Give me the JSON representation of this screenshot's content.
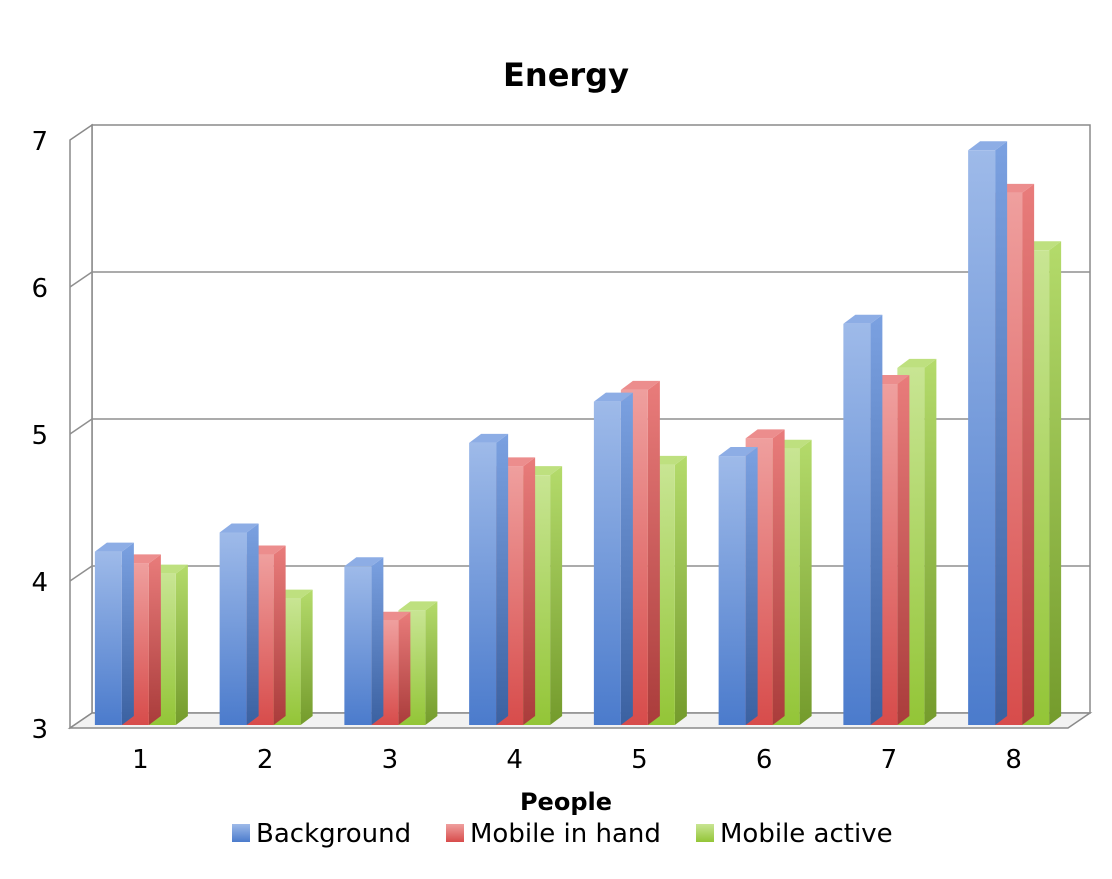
{
  "chart_data": {
    "type": "bar",
    "title": "Energy",
    "xlabel": "People",
    "ylabel": "",
    "categories": [
      "1",
      "2",
      "3",
      "4",
      "5",
      "6",
      "7",
      "8"
    ],
    "ylim": [
      3,
      7
    ],
    "yticks": [
      "3",
      "4",
      "5",
      "6",
      "7"
    ],
    "grid": true,
    "legend_position": "bottom",
    "series": [
      {
        "name": "Background",
        "color": "#4f81d7",
        "values": [
          4.2,
          4.33,
          4.1,
          4.94,
          5.22,
          4.85,
          5.75,
          6.93
        ]
      },
      {
        "name": "Mobile in hand",
        "color": "#e2504f",
        "values": [
          4.12,
          4.18,
          3.73,
          4.78,
          5.3,
          4.97,
          5.34,
          6.64
        ]
      },
      {
        "name": "Mobile active",
        "color": "#9bcf3a",
        "values": [
          4.05,
          3.88,
          3.8,
          4.72,
          4.79,
          4.9,
          5.45,
          6.25
        ]
      }
    ]
  }
}
